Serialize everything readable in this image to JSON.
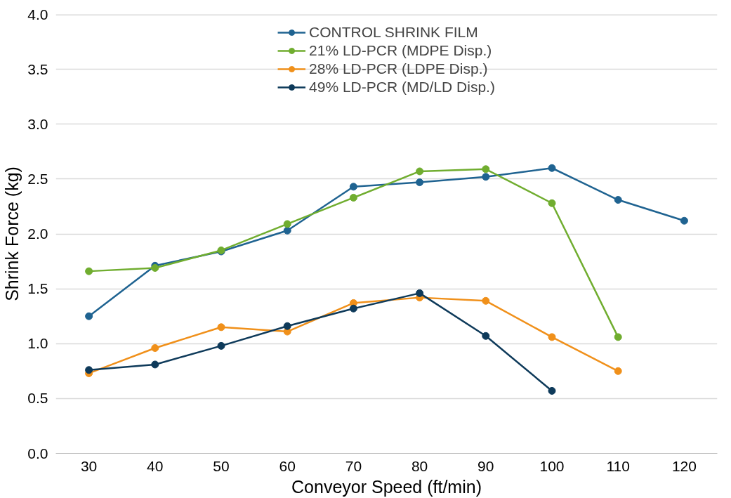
{
  "chart_data": {
    "type": "line",
    "xlabel": "Conveyor Speed (ft/min)",
    "ylabel": "Shrink Force (kg)",
    "categories": [
      "30",
      "40",
      "50",
      "60",
      "70",
      "80",
      "90",
      "100",
      "110",
      "120"
    ],
    "ylim": [
      0,
      4
    ],
    "yticks": [
      {
        "value": 0,
        "label": "0.0"
      },
      {
        "value": 0.5,
        "label": "0.5"
      },
      {
        "value": 1,
        "label": "1.0"
      },
      {
        "value": 1.5,
        "label": "1.5"
      },
      {
        "value": 2,
        "label": "2.0"
      },
      {
        "value": 2.5,
        "label": "2.5"
      },
      {
        "value": 3,
        "label": "3.0"
      },
      {
        "value": 3.5,
        "label": "3.5"
      },
      {
        "value": 4,
        "label": "4.0"
      }
    ],
    "grid": "y",
    "legend": "top",
    "marker": "circle",
    "line_style": "solid",
    "series": [
      {
        "name": "CONTROL SHRINK FILM",
        "color": "#1f6391",
        "values": [
          1.25,
          1.71,
          1.84,
          2.03,
          2.43,
          2.47,
          2.52,
          2.6,
          2.31,
          2.12
        ]
      },
      {
        "name": "21% LD-PCR (MDPE Disp.)",
        "color": "#70ad2f",
        "values": [
          1.66,
          1.69,
          1.85,
          2.09,
          2.33,
          2.57,
          2.59,
          2.28,
          1.06,
          null
        ]
      },
      {
        "name": "28% LD-PCR (LDPE Disp.)",
        "color": "#f0901a",
        "values": [
          0.73,
          0.96,
          1.15,
          1.11,
          1.37,
          1.42,
          1.39,
          1.06,
          0.75,
          null
        ]
      },
      {
        "name": "49% LD-PCR (MD/LD Disp.)",
        "color": "#0e3a5a",
        "values": [
          0.76,
          0.81,
          0.98,
          1.16,
          1.32,
          1.46,
          1.07,
          0.57,
          null,
          null
        ]
      }
    ]
  }
}
